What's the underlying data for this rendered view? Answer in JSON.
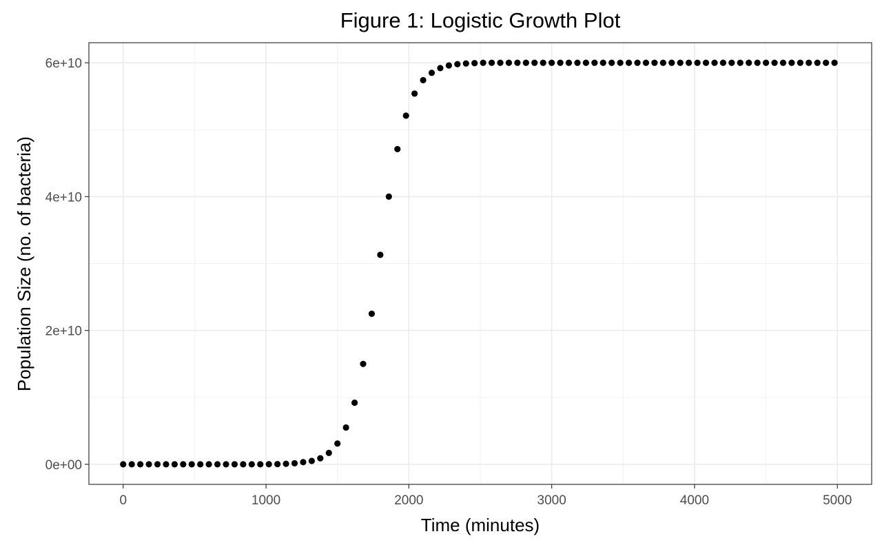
{
  "chart_data": {
    "type": "scatter",
    "title": "Figure 1: Logistic Growth Plot",
    "xlabel": "Time (minutes)",
    "ylabel": "Population Size (no. of bacteria)",
    "xlim": [
      -240,
      5240
    ],
    "ylim": [
      -3000000000,
      63000000000
    ],
    "x_ticks": [
      0,
      1000,
      2000,
      3000,
      4000,
      5000
    ],
    "x_tick_labels": [
      "0",
      "1000",
      "2000",
      "3000",
      "4000",
      "5000"
    ],
    "y_ticks": [
      0,
      20000000000,
      40000000000,
      60000000000
    ],
    "y_tick_labels": [
      "0e+00",
      "2e+10",
      "4e+10",
      "6e+10"
    ],
    "grid": true,
    "point_color": "#000000",
    "series": [
      {
        "x": [
          0,
          60,
          120,
          180,
          240,
          300,
          360,
          420,
          480,
          540,
          600,
          660,
          720,
          780,
          840,
          900,
          960,
          1020,
          1080,
          1140,
          1200,
          1260,
          1320,
          1380,
          1440,
          1500,
          1560,
          1620,
          1680,
          1740,
          1800,
          1860,
          1920,
          1980,
          2040,
          2100,
          2160,
          2220,
          2280,
          2340,
          2400,
          2460,
          2520,
          2580,
          2640,
          2700,
          2760,
          2820,
          2880,
          2940,
          3000,
          3060,
          3120,
          3180,
          3240,
          3300,
          3360,
          3420,
          3480,
          3540,
          3600,
          3660,
          3720,
          3780,
          3840,
          3900,
          3960,
          4020,
          4080,
          4140,
          4200,
          4260,
          4320,
          4380,
          4440,
          4500,
          4560,
          4620,
          4680,
          4740,
          4800,
          4860,
          4920,
          4980
        ],
        "y": [
          0,
          0,
          0,
          0,
          0,
          0,
          0,
          0,
          0,
          0,
          0,
          0,
          0,
          0,
          0,
          0,
          0,
          10000000,
          30000000,
          80000000,
          150000000,
          320000000,
          500000000,
          900000000,
          1700000000,
          3100000000,
          5500000000,
          9200000000,
          15000000000,
          22500000000,
          31300000000,
          40000000000,
          47100000000,
          52100000000,
          55400000000,
          57400000000,
          58500000000,
          59200000000,
          59600000000,
          59800000000,
          59900000000,
          59950000000,
          60000000000,
          60000000000,
          60000000000,
          60000000000,
          60000000000,
          60000000000,
          60000000000,
          60000000000,
          60000000000,
          60000000000,
          60000000000,
          60000000000,
          60000000000,
          60000000000,
          60000000000,
          60000000000,
          60000000000,
          60000000000,
          60000000000,
          60000000000,
          60000000000,
          60000000000,
          60000000000,
          60000000000,
          60000000000,
          60000000000,
          60000000000,
          60000000000,
          60000000000,
          60000000000,
          60000000000,
          60000000000,
          60000000000,
          60000000000,
          60000000000,
          60000000000,
          60000000000,
          60000000000,
          60000000000,
          60000000000,
          60000000000,
          60000000000
        ]
      }
    ]
  }
}
